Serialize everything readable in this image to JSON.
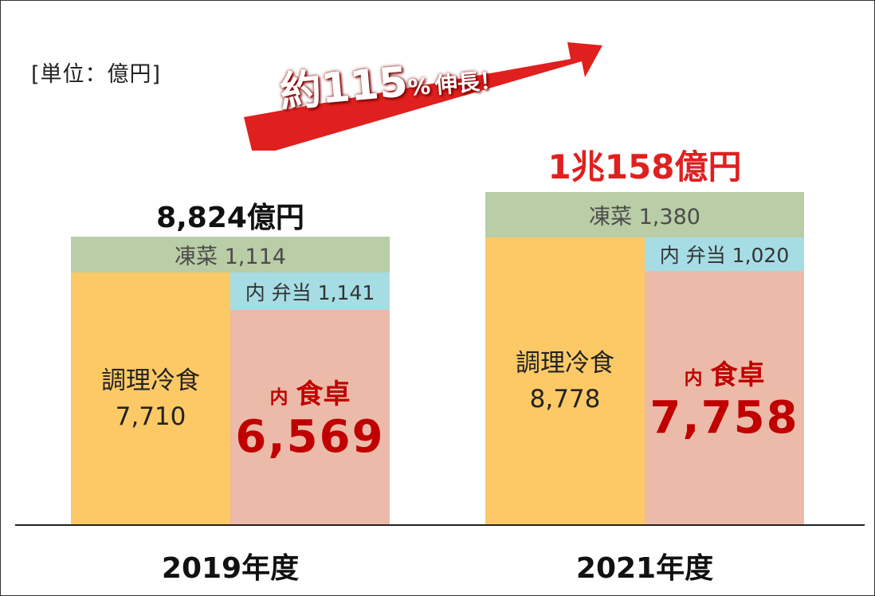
{
  "unit_label": "[単位：億円]",
  "growth": {
    "text": "約115",
    "percent": "%",
    "tail": "伸長！",
    "arrow_color": "#e0201e"
  },
  "colors": {
    "frozen_veg": "#b9cda6",
    "bento": "#a6dde5",
    "cooked": "#fcc966",
    "dining": "#ecbaa9",
    "accent_red": "#c00000"
  },
  "chart_data": {
    "type": "bar",
    "categories": [
      "2019年度",
      "2021年度"
    ],
    "series": [
      {
        "name": "凍菜",
        "values": [
          1114,
          1380
        ]
      },
      {
        "name": "調理冷食",
        "values": [
          7710,
          8778
        ]
      },
      {
        "name": "弁当",
        "values": [
          1141,
          1020
        ]
      },
      {
        "name": "食卓",
        "values": [
          6569,
          7758
        ]
      }
    ],
    "totals": [
      8824,
      10158
    ],
    "bars": [
      {
        "year_label": "2019年度",
        "total_label": "8,824億円",
        "frozen_veg_label": "凍菜 1,114",
        "bento_label": "内 弁当 1,141",
        "cooked_label": "調理冷食",
        "cooked_value": "7,710",
        "dining_prefix": "内",
        "dining_label": "食卓",
        "dining_value": "6,569"
      },
      {
        "year_label": "2021年度",
        "total_label": "1兆158億円",
        "frozen_veg_label": "凍菜 1,380",
        "bento_label": "内 弁当 1,020",
        "cooked_label": "調理冷食",
        "cooked_value": "8,778",
        "dining_prefix": "内",
        "dining_label": "食卓",
        "dining_value": "7,758"
      }
    ]
  }
}
